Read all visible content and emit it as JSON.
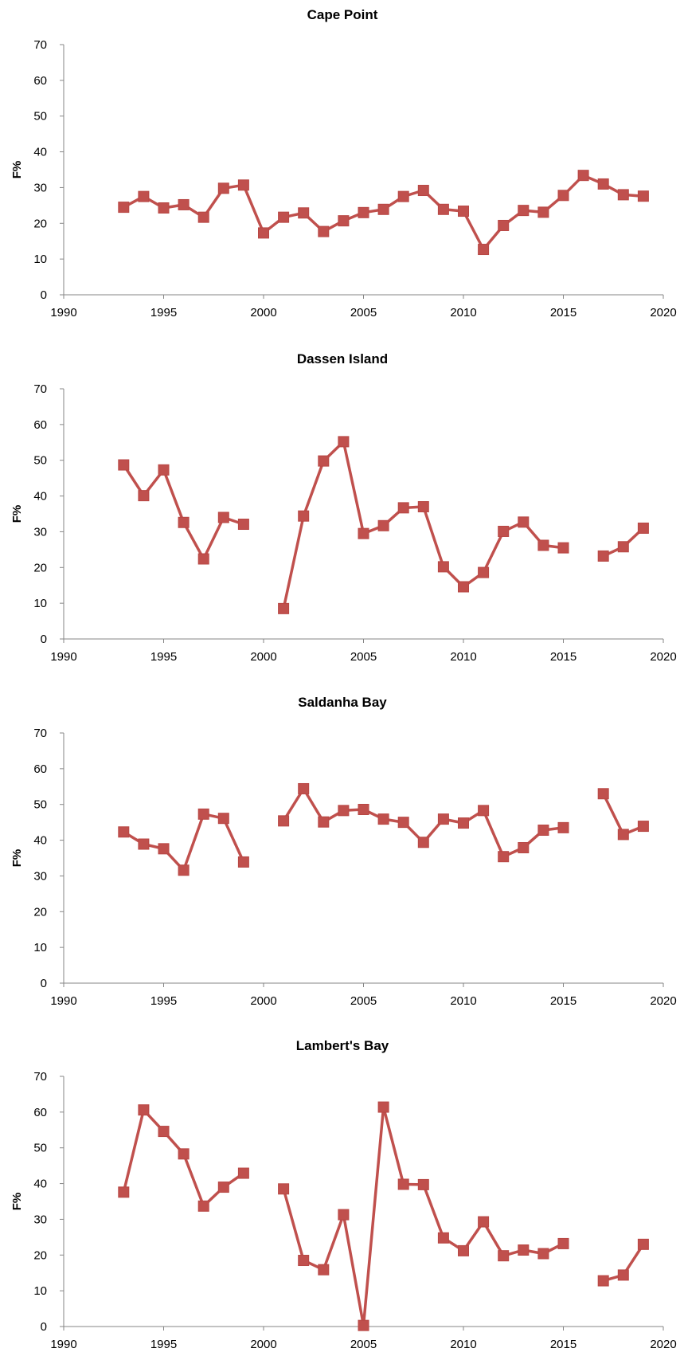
{
  "chart_data": [
    {
      "type": "line",
      "title": "Cape Point",
      "xlabel": "",
      "ylabel": "F%",
      "xlim": [
        1990,
        2020
      ],
      "ylim": [
        0,
        70
      ],
      "xticks": [
        1990,
        1995,
        2000,
        2005,
        2010,
        2015,
        2020
      ],
      "yticks": [
        0,
        10,
        20,
        30,
        40,
        50,
        60,
        70
      ],
      "grid": false,
      "color": "#C0504D",
      "x": [
        1993,
        1994,
        1995,
        1996,
        1997,
        1998,
        1999,
        2000,
        2001,
        2002,
        2003,
        2004,
        2005,
        2006,
        2007,
        2008,
        2009,
        2010,
        2011,
        2012,
        2013,
        2014,
        2015,
        2016,
        2017,
        2018,
        2019
      ],
      "values": [
        24.5,
        27.5,
        24.3,
        25.2,
        21.7,
        29.8,
        30.7,
        17.3,
        21.7,
        22.9,
        17.7,
        20.7,
        23.0,
        23.9,
        27.5,
        29.2,
        23.9,
        23.4,
        12.7,
        19.4,
        23.6,
        23.1,
        27.8,
        33.4,
        31.0,
        28.0,
        27.6
      ]
    },
    {
      "type": "line",
      "title": "Dassen Island",
      "xlabel": "",
      "ylabel": "F%",
      "xlim": [
        1990,
        2020
      ],
      "ylim": [
        0,
        70
      ],
      "xticks": [
        1990,
        1995,
        2000,
        2005,
        2010,
        2015,
        2020
      ],
      "yticks": [
        0,
        10,
        20,
        30,
        40,
        50,
        60,
        70
      ],
      "grid": false,
      "color": "#C0504D",
      "x": [
        1993,
        1994,
        1995,
        1996,
        1997,
        1998,
        1999,
        2000,
        2001,
        2002,
        2003,
        2004,
        2005,
        2006,
        2007,
        2008,
        2009,
        2010,
        2011,
        2012,
        2013,
        2014,
        2015,
        2016,
        2017,
        2018,
        2019
      ],
      "values": [
        48.7,
        40.1,
        47.3,
        32.6,
        22.4,
        34.0,
        32.1,
        null,
        8.5,
        34.4,
        49.8,
        55.2,
        29.5,
        31.7,
        36.7,
        37.0,
        20.2,
        14.6,
        18.6,
        30.1,
        32.7,
        26.2,
        25.5,
        null,
        23.2,
        25.8,
        31.0
      ]
    },
    {
      "type": "line",
      "title": "Saldanha Bay",
      "xlabel": "",
      "ylabel": "F%",
      "xlim": [
        1990,
        2020
      ],
      "ylim": [
        0,
        70
      ],
      "xticks": [
        1990,
        1995,
        2000,
        2005,
        2010,
        2015,
        2020
      ],
      "yticks": [
        0,
        10,
        20,
        30,
        40,
        50,
        60,
        70
      ],
      "grid": false,
      "color": "#C0504D",
      "x": [
        1993,
        1994,
        1995,
        1996,
        1997,
        1998,
        1999,
        2000,
        2001,
        2002,
        2003,
        2004,
        2005,
        2006,
        2007,
        2008,
        2009,
        2010,
        2011,
        2012,
        2013,
        2014,
        2015,
        2016,
        2017,
        2018,
        2019
      ],
      "values": [
        42.3,
        38.9,
        37.6,
        31.6,
        47.3,
        46.1,
        33.9,
        null,
        45.4,
        54.4,
        45.1,
        48.3,
        48.6,
        45.9,
        45.0,
        39.4,
        45.9,
        44.8,
        48.3,
        35.4,
        37.9,
        42.8,
        43.5,
        null,
        53.0,
        41.6,
        43.9
      ]
    },
    {
      "type": "line",
      "title": "Lambert's Bay",
      "xlabel": "",
      "ylabel": "F%",
      "xlim": [
        1990,
        2020
      ],
      "ylim": [
        0,
        70
      ],
      "xticks": [
        1990,
        1995,
        2000,
        2005,
        2010,
        2015,
        2020
      ],
      "yticks": [
        0,
        10,
        20,
        30,
        40,
        50,
        60,
        70
      ],
      "grid": false,
      "color": "#C0504D",
      "x": [
        1993,
        1994,
        1995,
        1996,
        1997,
        1998,
        1999,
        2000,
        2001,
        2002,
        2003,
        2004,
        2005,
        2006,
        2007,
        2008,
        2009,
        2010,
        2011,
        2012,
        2013,
        2014,
        2015,
        2016,
        2017,
        2018,
        2019
      ],
      "values": [
        37.6,
        60.6,
        54.6,
        48.3,
        33.7,
        39.0,
        42.9,
        null,
        38.5,
        18.5,
        15.9,
        31.3,
        0.3,
        61.4,
        39.8,
        39.7,
        24.8,
        21.2,
        29.3,
        19.8,
        21.4,
        20.4,
        23.2,
        null,
        12.8,
        14.4,
        23.0
      ]
    }
  ]
}
